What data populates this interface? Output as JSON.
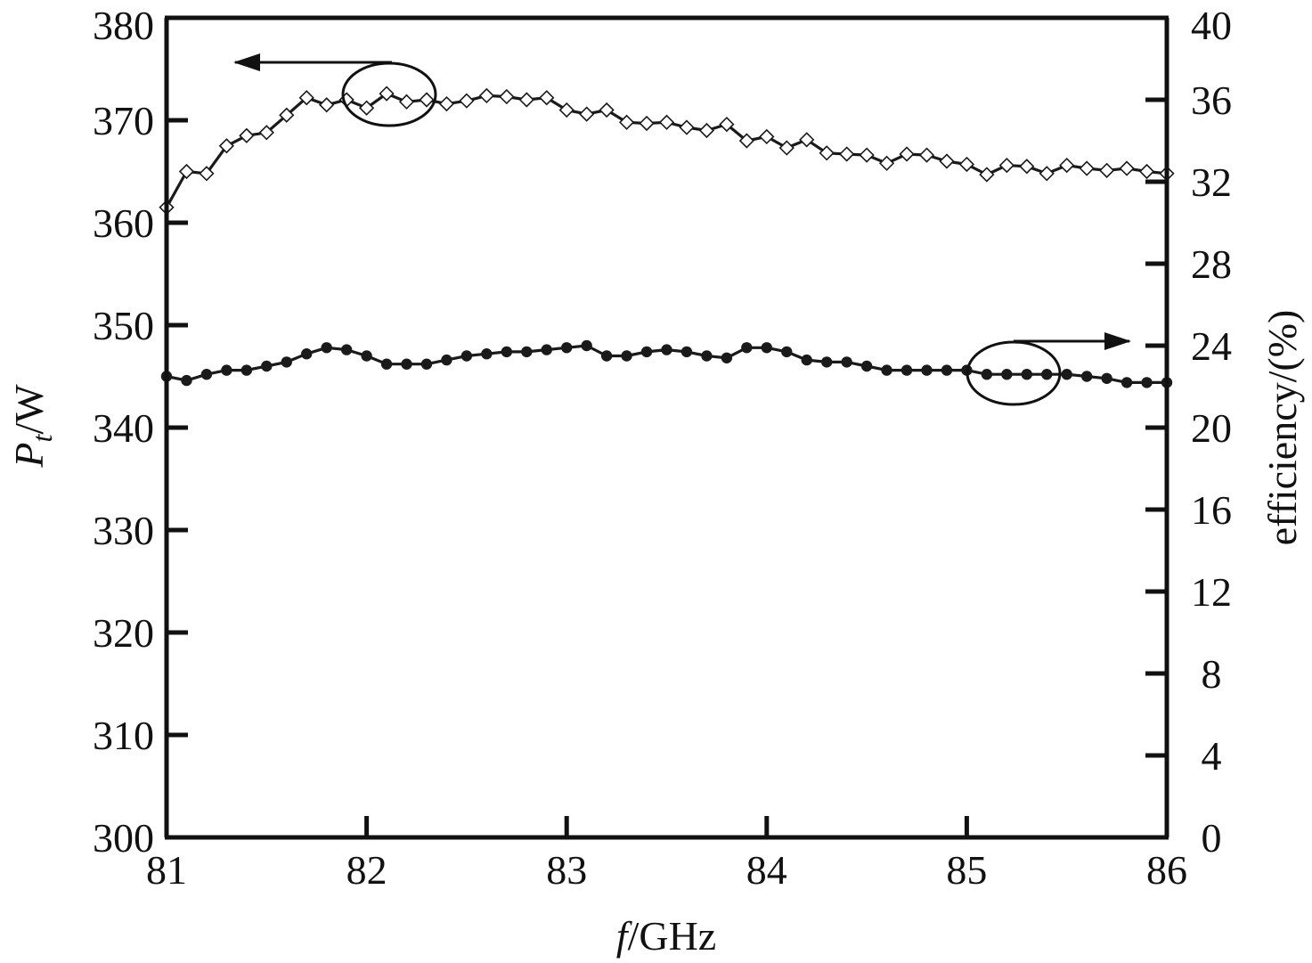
{
  "chart_data": {
    "type": "line",
    "x_axis": {
      "label_italic": "f",
      "label_rest": "/GHz",
      "range": [
        81,
        86
      ],
      "ticks": [
        81,
        82,
        83,
        84,
        85,
        86
      ],
      "tick_labels": [
        "81",
        "82",
        "83",
        "84",
        "85",
        "86"
      ]
    },
    "y_axis_left": {
      "label_italic": "P",
      "label_sub": "t",
      "label_rest": "/W",
      "range": [
        300,
        380
      ],
      "ticks": [
        300,
        310,
        320,
        330,
        340,
        350,
        360,
        370,
        380
      ],
      "tick_labels": [
        "300",
        "310",
        "320",
        "330",
        "340",
        "350",
        "360",
        "370",
        "380"
      ]
    },
    "y_axis_right": {
      "label": "efficiency/(%)",
      "range": [
        0,
        40
      ],
      "ticks": [
        0,
        4,
        8,
        12,
        16,
        20,
        24,
        28,
        32,
        36,
        40
      ],
      "tick_labels": [
        "0",
        "4",
        "8",
        "12",
        "16",
        "20",
        "24",
        "28",
        "32",
        "36",
        "40"
      ]
    },
    "grid": false,
    "series": [
      {
        "axis": "left",
        "marker": "open-diamond",
        "color": "#1a1a1a",
        "x": [
          81.0,
          81.1,
          81.2,
          81.3,
          81.4,
          81.5,
          81.6,
          81.7,
          81.8,
          81.9,
          82.0,
          82.1,
          82.2,
          82.3,
          82.4,
          82.5,
          82.6,
          82.7,
          82.8,
          82.9,
          83.0,
          83.1,
          83.2,
          83.3,
          83.4,
          83.5,
          83.6,
          83.7,
          83.8,
          83.9,
          84.0,
          84.1,
          84.2,
          84.3,
          84.4,
          84.5,
          84.6,
          84.7,
          84.8,
          84.9,
          85.0,
          85.1,
          85.2,
          85.3,
          85.4,
          85.5,
          85.6,
          85.7,
          85.8,
          85.9,
          86.0
        ],
        "values": [
          361.5,
          365.0,
          364.8,
          367.5,
          368.5,
          368.8,
          370.5,
          372.2,
          371.5,
          372.0,
          371.2,
          372.6,
          371.8,
          372.0,
          371.6,
          371.9,
          372.4,
          372.3,
          372.0,
          372.2,
          371.0,
          370.6,
          371.0,
          369.8,
          369.7,
          369.8,
          369.3,
          369.0,
          369.6,
          368.0,
          368.4,
          367.3,
          368.1,
          366.8,
          366.7,
          366.6,
          365.8,
          366.7,
          366.6,
          366.0,
          365.7,
          364.7,
          365.6,
          365.5,
          364.8,
          365.6,
          365.3,
          365.1,
          365.3,
          365.0,
          364.8
        ]
      },
      {
        "axis": "right",
        "marker": "filled-circle",
        "color": "#1a1a1a",
        "x": [
          81.0,
          81.1,
          81.2,
          81.3,
          81.4,
          81.5,
          81.6,
          81.7,
          81.8,
          81.9,
          82.0,
          82.1,
          82.2,
          82.3,
          82.4,
          82.5,
          82.6,
          82.7,
          82.8,
          82.9,
          83.0,
          83.1,
          83.2,
          83.3,
          83.4,
          83.5,
          83.6,
          83.7,
          83.8,
          83.9,
          84.0,
          84.1,
          84.2,
          84.3,
          84.4,
          84.5,
          84.6,
          84.7,
          84.8,
          84.9,
          85.0,
          85.1,
          85.2,
          85.3,
          85.4,
          85.5,
          85.6,
          85.7,
          85.8,
          85.9,
          86.0
        ],
        "values": [
          22.5,
          22.3,
          22.6,
          22.8,
          22.8,
          23.0,
          23.2,
          23.6,
          23.9,
          23.8,
          23.5,
          23.1,
          23.1,
          23.1,
          23.3,
          23.5,
          23.6,
          23.7,
          23.7,
          23.8,
          23.9,
          24.0,
          23.5,
          23.5,
          23.7,
          23.8,
          23.7,
          23.5,
          23.4,
          23.9,
          23.9,
          23.7,
          23.3,
          23.2,
          23.2,
          23.0,
          22.8,
          22.8,
          22.8,
          22.8,
          22.8,
          22.6,
          22.6,
          22.6,
          22.6,
          22.6,
          22.5,
          22.4,
          22.2,
          22.2,
          22.2
        ]
      }
    ],
    "annotations": [
      {
        "type": "ellipse-with-arrow",
        "target_series": 0,
        "arrow_direction": "left"
      },
      {
        "type": "ellipse-with-arrow",
        "target_series": 1,
        "arrow_direction": "right"
      }
    ]
  }
}
